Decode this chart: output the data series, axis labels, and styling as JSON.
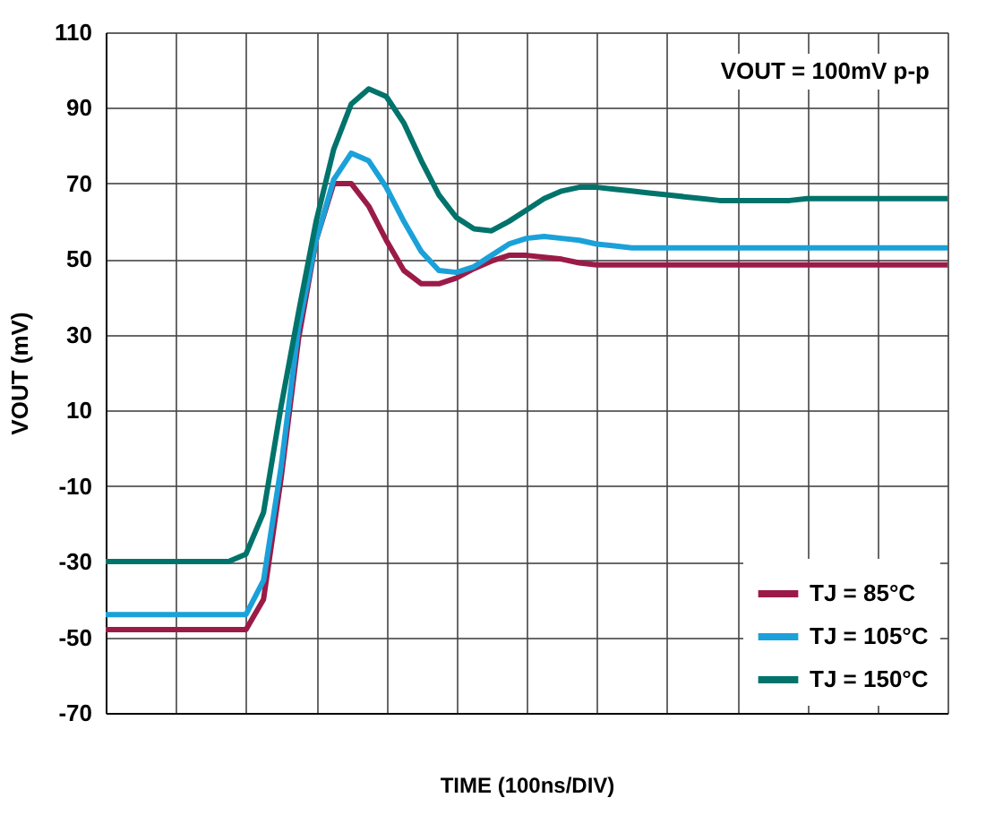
{
  "chart_data": {
    "type": "line",
    "xlabel": "TIME (100ns/DIV)",
    "ylabel": "VOUT (mV)",
    "annotations": [
      "VOUT = 100mV p-p"
    ],
    "categories": [
      null,
      null,
      null,
      null,
      null,
      null,
      null,
      null,
      null,
      null,
      null,
      null,
      null,
      null,
      null,
      null,
      null,
      null,
      null,
      null,
      null,
      null,
      null,
      null,
      null,
      null,
      null,
      null,
      null,
      null,
      null,
      null,
      null,
      null,
      null,
      null,
      null,
      null,
      null,
      null,
      null,
      null,
      null,
      null,
      null,
      null,
      null,
      null,
      null
    ],
    "ylim": [
      -70,
      110
    ],
    "yticks": [
      -70,
      -50,
      -30,
      -10,
      10,
      30,
      50,
      70,
      90,
      110
    ],
    "grid": true,
    "legend": "bottom right",
    "tick_labels": "y",
    "line_style": "solid",
    "marker": "none",
    "series": [
      {
        "name": "TJ = 85°C",
        "color": "#9b1b48",
        "values": [
          -48,
          -48,
          -48,
          -48,
          -48,
          -48,
          -48,
          -48,
          -48,
          -40,
          -8,
          29,
          55,
          70,
          70,
          64,
          55,
          47,
          43.5,
          43.5,
          45,
          47.5,
          49.5,
          51,
          51,
          50.5,
          50,
          49,
          48.5,
          48.5,
          48.5,
          48.5,
          48.5,
          48.5,
          48.5,
          48.5,
          48.5,
          48.5,
          48.5,
          48.5,
          48.5,
          48.5,
          48.5,
          48.5,
          48.5,
          48.5,
          48.5,
          48.5,
          48.5
        ]
      },
      {
        "name": "TJ = 105°C",
        "color": "#1ba1d9",
        "values": [
          -44,
          -44,
          -44,
          -44,
          -44,
          -44,
          -44,
          -44,
          -44,
          -35,
          -5,
          32,
          55,
          71,
          78,
          76,
          69,
          60,
          52,
          47,
          46.5,
          48,
          51,
          54,
          55.5,
          56,
          55.5,
          55,
          54,
          53.5,
          53,
          53,
          53,
          53,
          53,
          53,
          53,
          53,
          53,
          53,
          53,
          53,
          53,
          53,
          53,
          53,
          53,
          53,
          53
        ]
      },
      {
        "name": "TJ = 150°C",
        "color": "#00736b",
        "values": [
          -30,
          -30,
          -30,
          -30,
          -30,
          -30,
          -30,
          -30,
          -28,
          -17,
          11,
          36,
          60,
          79,
          91,
          95,
          93,
          86,
          76,
          67,
          61,
          58,
          57.5,
          60,
          63,
          66,
          68,
          69,
          69,
          68.5,
          68,
          67.5,
          67,
          66.5,
          66,
          65.5,
          65.5,
          65.5,
          65.5,
          65.5,
          66,
          66,
          66,
          66,
          66,
          66,
          66,
          66,
          66
        ]
      }
    ]
  }
}
